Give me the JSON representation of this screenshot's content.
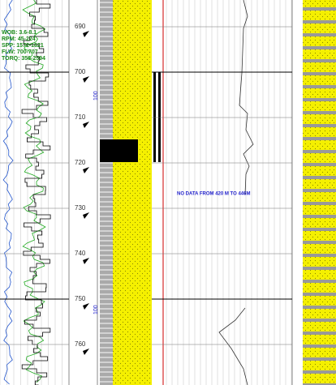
{
  "params": [
    "WOB: 3.6-8.1",
    "RPM: 45-224",
    "SPP: 1572-1821",
    "FLW: 700-707",
    "TORQ: 356-2594"
  ],
  "depths": [
    "690",
    "700",
    "710",
    "720",
    "730",
    "740",
    "750",
    "760"
  ],
  "markers": [
    "100",
    "100"
  ],
  "note": "NO DATA FROM 420 M TO 446M"
}
